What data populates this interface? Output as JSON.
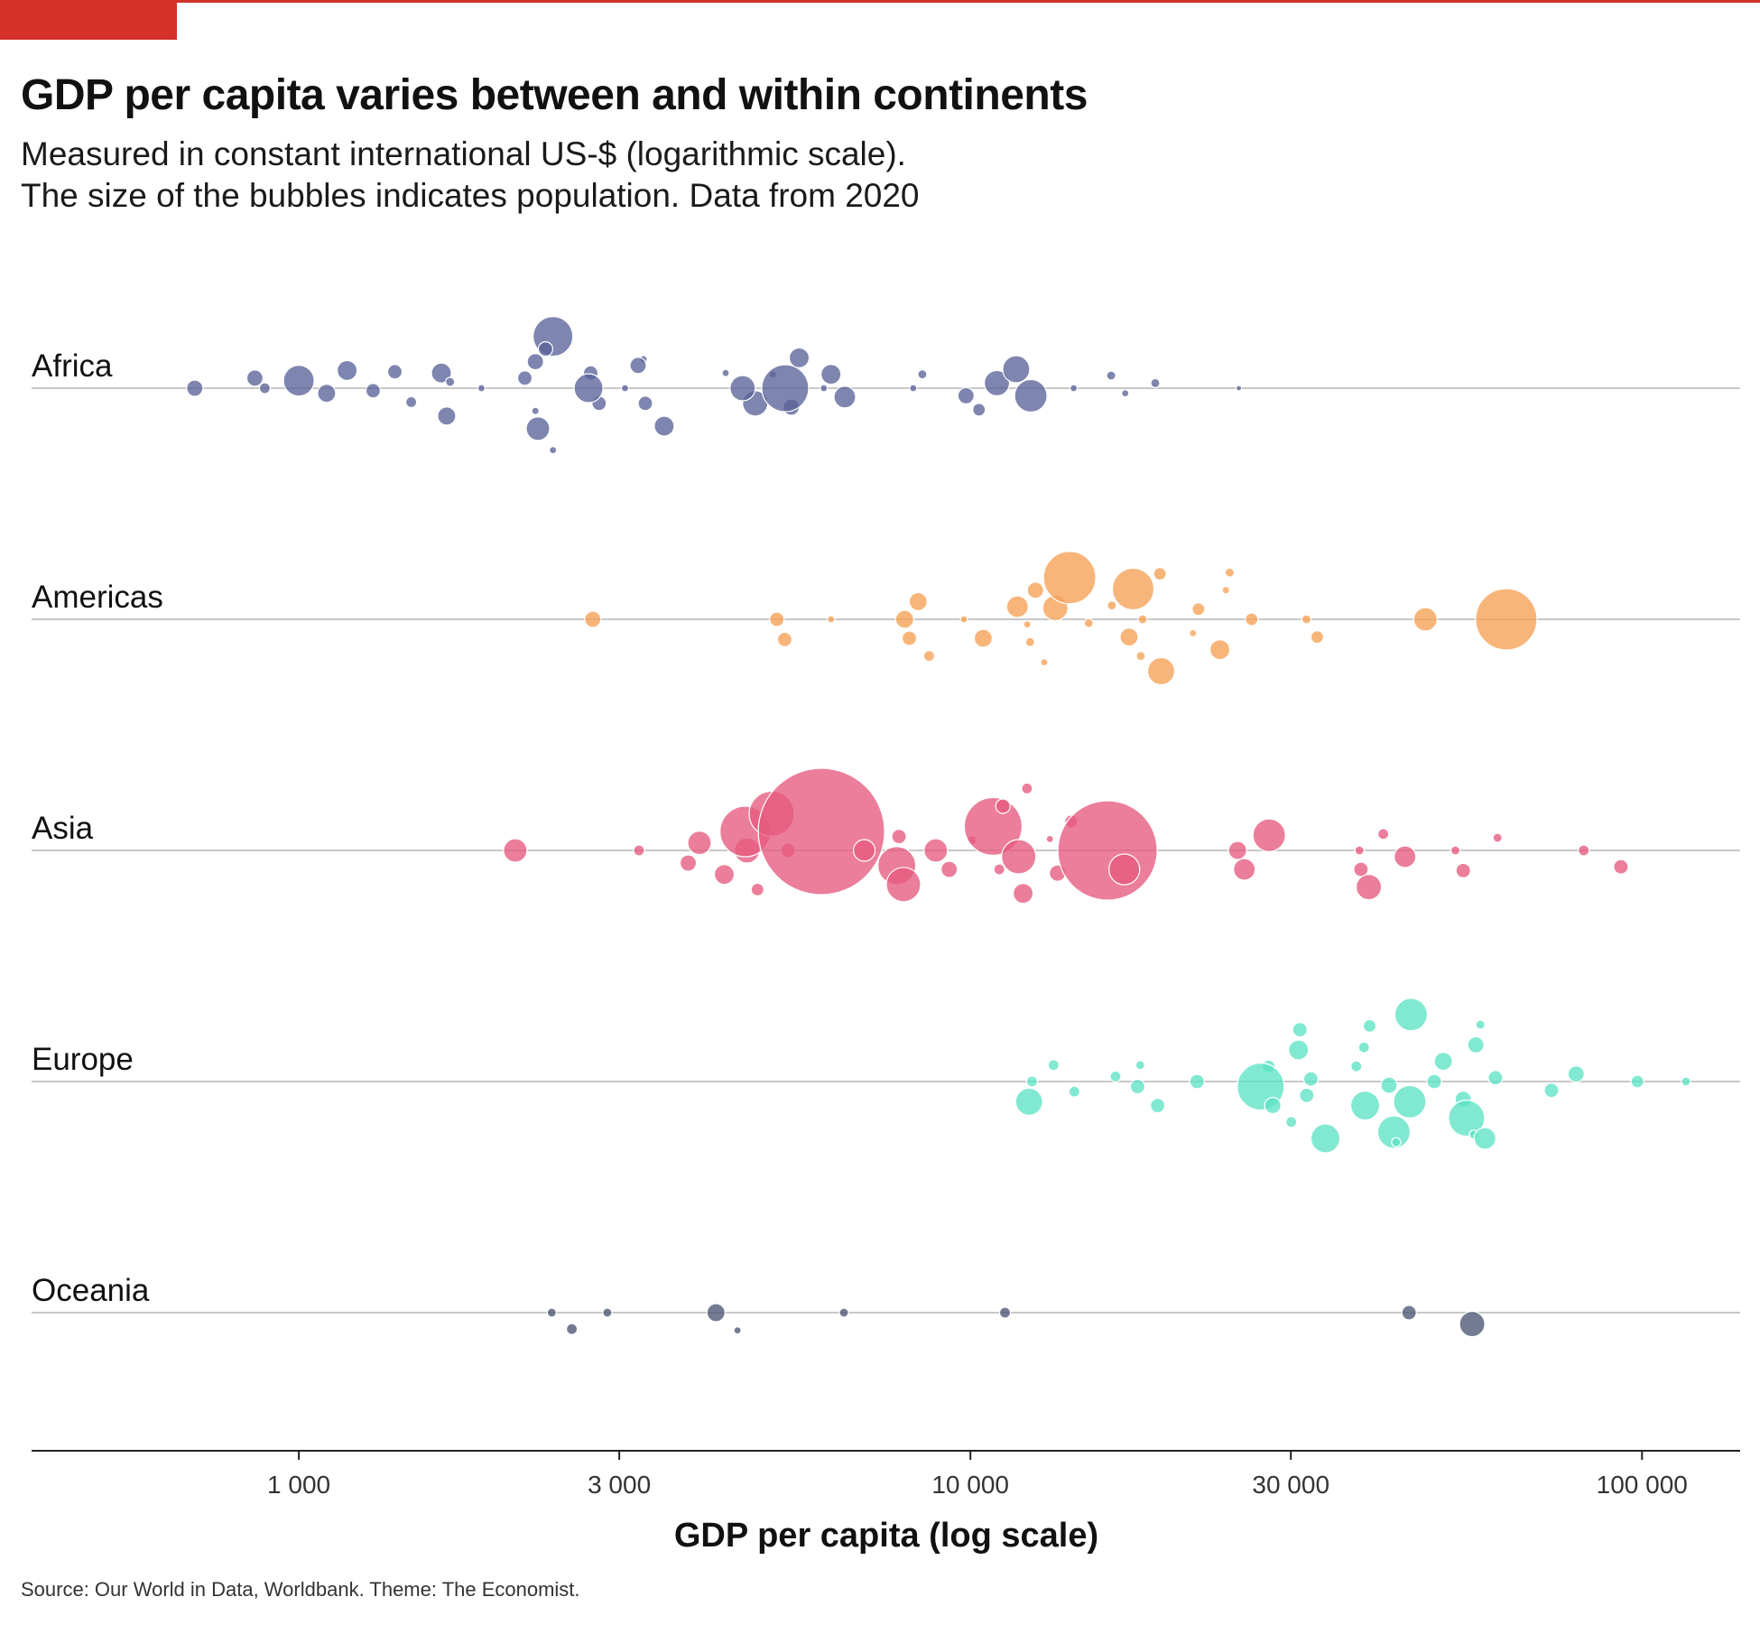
{
  "header": {
    "title": "GDP per capita varies between and within continents",
    "subtitle_line1": "Measured in constant international US-$ (logarithmic scale).",
    "subtitle_line2": "The size of the bubbles indicates population. Data from 2020"
  },
  "source": "Source: Our World in Data, Worldbank. Theme: The Economist.",
  "colors": {
    "accent": "#d3312a",
    "Africa": "#5a6399",
    "Americas": "#f6a055",
    "Asia": "#e65a7f",
    "Europe": "#5de3c4",
    "Oceania": "#4c5675",
    "grid": "#c8c8c8",
    "axis": "#222222"
  },
  "chart_data": {
    "type": "scatter",
    "xlabel": "GDP per capita (log scale)",
    "xscale": "log",
    "xlim": [
      400,
      140000
    ],
    "xticks": [
      1000,
      3000,
      10000,
      30000,
      100000
    ],
    "xtick_labels": [
      "1 000",
      "3 000",
      "10 000",
      "30 000",
      "100 000"
    ],
    "categories": [
      "Africa",
      "Americas",
      "Asia",
      "Europe",
      "Oceania"
    ],
    "series": [
      {
        "name": "Africa",
        "points": [
          [
            2390,
            -4.1,
            22
          ],
          [
            2330,
            -3.1,
            8
          ],
          [
            2250,
            -2.1,
            9
          ],
          [
            2170,
            -0.8,
            8
          ],
          [
            2250,
            1.8,
            4
          ],
          [
            2270,
            3.2,
            13
          ],
          [
            2390,
            4.9,
            4
          ],
          [
            3260,
            -2.3,
            4
          ],
          [
            3500,
            3.0,
            11
          ],
          [
            3280,
            1.2,
            8
          ],
          [
            3200,
            -1.8,
            9
          ],
          [
            3060,
            0,
            4
          ],
          [
            2720,
            -1.2,
            8
          ],
          [
            2800,
            1.2,
            8
          ],
          [
            2700,
            0,
            16
          ],
          [
            5560,
            -2.4,
            11
          ],
          [
            5410,
            1.5,
            9
          ],
          [
            5080,
            -1.1,
            4
          ],
          [
            4780,
            1.2,
            14
          ],
          [
            4580,
            0,
            14
          ],
          [
            4320,
            -1.2,
            4
          ],
          [
            5300,
            0,
            26
          ],
          [
            6200,
            -1.1,
            11
          ],
          [
            6050,
            0,
            4
          ],
          [
            6500,
            0.7,
            12
          ],
          [
            8480,
            -1.1,
            5
          ],
          [
            8220,
            0,
            4
          ],
          [
            9850,
            0.6,
            9
          ],
          [
            10300,
            1.7,
            7
          ],
          [
            10950,
            -0.4,
            14
          ],
          [
            11700,
            -1.5,
            15
          ],
          [
            12300,
            0.6,
            18
          ],
          [
            14250,
            0,
            4
          ],
          [
            16200,
            -1.0,
            5
          ],
          [
            17000,
            0.4,
            4
          ],
          [
            18850,
            -0.4,
            5
          ],
          [
            25100,
            0,
            3
          ],
          [
            1630,
            -1.2,
            11
          ],
          [
            1390,
            -1.3,
            8
          ],
          [
            1290,
            0.2,
            8
          ],
          [
            1180,
            -1.4,
            11
          ],
          [
            1680,
            -0.5,
            5
          ],
          [
            1000,
            -0.6,
            17
          ],
          [
            1100,
            0.4,
            10
          ],
          [
            1470,
            1.1,
            6
          ],
          [
            1660,
            2.2,
            10
          ],
          [
            860,
            -0.8,
            9
          ],
          [
            700,
            0,
            9
          ],
          [
            890,
            0,
            6
          ],
          [
            1870,
            0,
            4
          ]
        ]
      },
      {
        "name": "Americas",
        "points": [
          [
            2740,
            0,
            9
          ],
          [
            5150,
            0,
            8
          ],
          [
            6200,
            0,
            4
          ],
          [
            5290,
            1.6,
            8
          ],
          [
            7980,
            0,
            10
          ],
          [
            8110,
            1.5,
            8
          ],
          [
            8680,
            2.9,
            6
          ],
          [
            8360,
            -1.4,
            10
          ],
          [
            9780,
            0,
            4
          ],
          [
            10450,
            1.5,
            10
          ],
          [
            11750,
            -1.0,
            12
          ],
          [
            12270,
            1.8,
            5
          ],
          [
            12500,
            -2.3,
            9
          ],
          [
            12150,
            0.4,
            4
          ],
          [
            13380,
            -0.9,
            14
          ],
          [
            14050,
            -3.3,
            29
          ],
          [
            12880,
            3.4,
            4
          ],
          [
            15000,
            0.3,
            5
          ],
          [
            16240,
            -1.1,
            5
          ],
          [
            17230,
            1.4,
            10
          ],
          [
            17470,
            -2.4,
            23
          ],
          [
            17930,
            2.9,
            5
          ],
          [
            18050,
            0,
            5
          ],
          [
            19150,
            -3.6,
            7
          ],
          [
            19230,
            4.1,
            15
          ],
          [
            21450,
            1.1,
            4
          ],
          [
            21850,
            -0.8,
            7
          ],
          [
            23520,
            2.4,
            11
          ],
          [
            24010,
            -2.3,
            4
          ],
          [
            24320,
            -3.7,
            5
          ],
          [
            26220,
            0,
            7
          ],
          [
            31640,
            0,
            5
          ],
          [
            32840,
            1.4,
            7
          ],
          [
            47590,
            0,
            13
          ],
          [
            62800,
            0,
            34
          ]
        ]
      },
      {
        "name": "Asia",
        "points": [
          [
            2100,
            0,
            13
          ],
          [
            3210,
            0,
            6
          ],
          [
            3800,
            1.0,
            9
          ],
          [
            3950,
            -0.6,
            13
          ],
          [
            4300,
            1.9,
            11
          ],
          [
            4820,
            3.1,
            7
          ],
          [
            4650,
            0,
            14
          ],
          [
            4620,
            -1.5,
            28
          ],
          [
            5060,
            -2.9,
            25
          ],
          [
            5350,
            0,
            8
          ],
          [
            6000,
            -1.5,
            70
          ],
          [
            6950,
            0,
            12
          ],
          [
            7770,
            1.2,
            21
          ],
          [
            7950,
            2.7,
            19
          ],
          [
            7830,
            -1.1,
            8
          ],
          [
            8880,
            0,
            13
          ],
          [
            9300,
            1.5,
            9
          ],
          [
            10060,
            -0.8,
            5
          ],
          [
            10810,
            -1.9,
            32
          ],
          [
            11040,
            1.5,
            6
          ],
          [
            11180,
            -3.5,
            8
          ],
          [
            11980,
            3.4,
            11
          ],
          [
            11800,
            0.5,
            19
          ],
          [
            13130,
            -0.9,
            4
          ],
          [
            12140,
            -4.9,
            6
          ],
          [
            13480,
            1.8,
            9
          ],
          [
            14130,
            -2.3,
            7
          ],
          [
            16000,
            0,
            55
          ],
          [
            16950,
            1.5,
            17
          ],
          [
            24990,
            0,
            10
          ],
          [
            25580,
            1.5,
            12
          ],
          [
            27850,
            -1.2,
            18
          ],
          [
            38150,
            1.5,
            8
          ],
          [
            37950,
            0,
            5
          ],
          [
            39200,
            2.9,
            14
          ],
          [
            41190,
            -1.3,
            6
          ],
          [
            44380,
            0.5,
            12
          ],
          [
            52740,
            0,
            5
          ],
          [
            54170,
            1.6,
            8
          ],
          [
            60930,
            -1.0,
            5
          ],
          [
            81890,
            0,
            6
          ],
          [
            93010,
            1.3,
            8
          ]
        ]
      },
      {
        "name": "Europe",
        "points": [
          [
            12230,
            1.6,
            15
          ],
          [
            12350,
            0,
            6
          ],
          [
            13300,
            -1.3,
            6
          ],
          [
            14280,
            0.8,
            6
          ],
          [
            16450,
            -0.4,
            6
          ],
          [
            17900,
            -1.3,
            5
          ],
          [
            17740,
            0.4,
            8
          ],
          [
            19000,
            1.9,
            8
          ],
          [
            21750,
            0,
            8
          ],
          [
            27800,
            -1.2,
            7
          ],
          [
            27050,
            0.4,
            26
          ],
          [
            28200,
            1.9,
            9
          ],
          [
            30050,
            3.2,
            6
          ],
          [
            30800,
            -2.5,
            11
          ],
          [
            30950,
            -4.1,
            8
          ],
          [
            31680,
            1.1,
            8
          ],
          [
            32130,
            -0.2,
            8
          ],
          [
            33770,
            4.5,
            16
          ],
          [
            37560,
            -1.2,
            6
          ],
          [
            38550,
            -2.7,
            6
          ],
          [
            38700,
            1.9,
            16
          ],
          [
            39300,
            -4.4,
            7
          ],
          [
            42010,
            0.3,
            9
          ],
          [
            42710,
            4.0,
            18
          ],
          [
            43030,
            4.8,
            5
          ],
          [
            45090,
            1.6,
            18
          ],
          [
            45300,
            -5.3,
            18
          ],
          [
            49050,
            0,
            8
          ],
          [
            50590,
            -1.6,
            10
          ],
          [
            54180,
            1.4,
            9
          ],
          [
            54800,
            2.9,
            20
          ],
          [
            56580,
            -2.9,
            9
          ],
          [
            56180,
            4.2,
            5
          ],
          [
            57450,
            -4.5,
            5
          ],
          [
            58370,
            4.5,
            12
          ],
          [
            60500,
            -0.3,
            8
          ],
          [
            73320,
            0.7,
            8
          ],
          [
            79790,
            -0.6,
            9
          ],
          [
            98450,
            0,
            7
          ],
          [
            116290,
            0,
            5
          ]
        ]
      },
      {
        "name": "Oceania",
        "points": [
          [
            2380,
            0,
            5
          ],
          [
            2550,
            1.3,
            6
          ],
          [
            2880,
            0,
            5
          ],
          [
            4180,
            0,
            10
          ],
          [
            4500,
            1.4,
            4
          ],
          [
            6480,
            0,
            5
          ],
          [
            11260,
            0,
            6
          ],
          [
            45000,
            0,
            8
          ],
          [
            55860,
            0.9,
            14
          ]
        ]
      }
    ]
  }
}
